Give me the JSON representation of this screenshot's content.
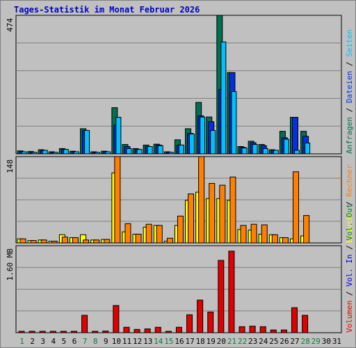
{
  "title": "Tages-Statistik im Monat Februar 2026",
  "colors": {
    "anfragen": "#007050",
    "dateien": "#0030e0",
    "seiten": "#00c0ff",
    "besuche": "#ffff00",
    "rechner": "#ff8000",
    "volumen": "#e00000",
    "vol_in": "#0000e0",
    "vol_out": "#008040",
    "weekend": "#008040",
    "plot_bg": "#c0c0c0",
    "grid": "#808080"
  },
  "chart_data": [
    {
      "type": "bar",
      "title": "Tages-Statistik im Monat Februar 2026",
      "categories": [
        "1",
        "2",
        "3",
        "4",
        "5",
        "6",
        "7",
        "8",
        "9",
        "10",
        "11",
        "12",
        "13",
        "14",
        "15",
        "16",
        "17",
        "18",
        "19",
        "20",
        "21",
        "22",
        "23",
        "24",
        "25",
        "26",
        "27",
        "28",
        "29",
        "30",
        "31"
      ],
      "weekend_days": [
        "1",
        "7",
        "8",
        "14",
        "15",
        "21",
        "22",
        "28",
        "29"
      ],
      "ymax_label": "474",
      "ylim": [
        0,
        474
      ],
      "right_labels": [
        "Anfragen",
        "Dateien",
        "Seiten"
      ],
      "series": [
        {
          "name": "Anfragen",
          "values": [
            10,
            8,
            14,
            7,
            18,
            9,
            86,
            7,
            9,
            158,
            32,
            18,
            30,
            33,
            7,
            48,
            86,
            176,
            126,
            474,
            278,
            25,
            43,
            32,
            14,
            77,
            125,
            77,
            0,
            0,
            0
          ]
        },
        {
          "name": "Dateien",
          "values": [
            7,
            5,
            12,
            5,
            15,
            7,
            80,
            5,
            7,
            98,
            25,
            15,
            25,
            30,
            5,
            30,
            70,
            130,
            110,
            220,
            278,
            22,
            38,
            28,
            12,
            55,
            125,
            60,
            0,
            0,
            0
          ]
        },
        {
          "name": "Seiten",
          "values": [
            7,
            5,
            12,
            5,
            15,
            7,
            80,
            5,
            7,
            125,
            18,
            15,
            25,
            28,
            5,
            30,
            68,
            126,
            80,
            383,
            213,
            20,
            32,
            18,
            12,
            50,
            12,
            37,
            0,
            0,
            0
          ]
        }
      ]
    },
    {
      "type": "bar",
      "ymax_label": "148",
      "ylim": [
        0,
        148
      ],
      "right_labels": [
        "Besuche",
        "Rechner"
      ],
      "series": [
        {
          "name": "Besuche",
          "values": [
            7,
            4,
            5,
            3,
            14,
            9,
            14,
            5,
            6,
            120,
            19,
            15,
            27,
            30,
            3,
            30,
            73,
            87,
            76,
            76,
            73,
            23,
            22,
            15,
            14,
            9,
            7,
            12,
            0,
            0,
            0
          ]
        },
        {
          "name": "Rechner",
          "values": [
            7,
            4,
            5,
            3,
            10,
            9,
            5,
            5,
            6,
            148,
            33,
            15,
            32,
            30,
            8,
            46,
            84,
            148,
            102,
            99,
            113,
            30,
            32,
            31,
            14,
            9,
            122,
            47,
            0,
            0,
            0
          ]
        }
      ]
    },
    {
      "type": "bar",
      "ymax_label": "1.60 MB",
      "ylim": [
        0,
        1.6
      ],
      "right_labels": [
        "Volumen",
        "Vol. In",
        "Vol. Out"
      ],
      "series": [
        {
          "name": "Volumen",
          "values": [
            0.005,
            0.005,
            0.005,
            0.005,
            0.005,
            0.005,
            0.32,
            0.01,
            0.03,
            0.5,
            0.1,
            0.06,
            0.07,
            0.1,
            0.01,
            0.1,
            0.33,
            0.6,
            0.38,
            1.33,
            1.5,
            0.11,
            0.12,
            0.11,
            0.05,
            0.05,
            0.46,
            0.32,
            0,
            0,
            0
          ]
        }
      ]
    }
  ]
}
